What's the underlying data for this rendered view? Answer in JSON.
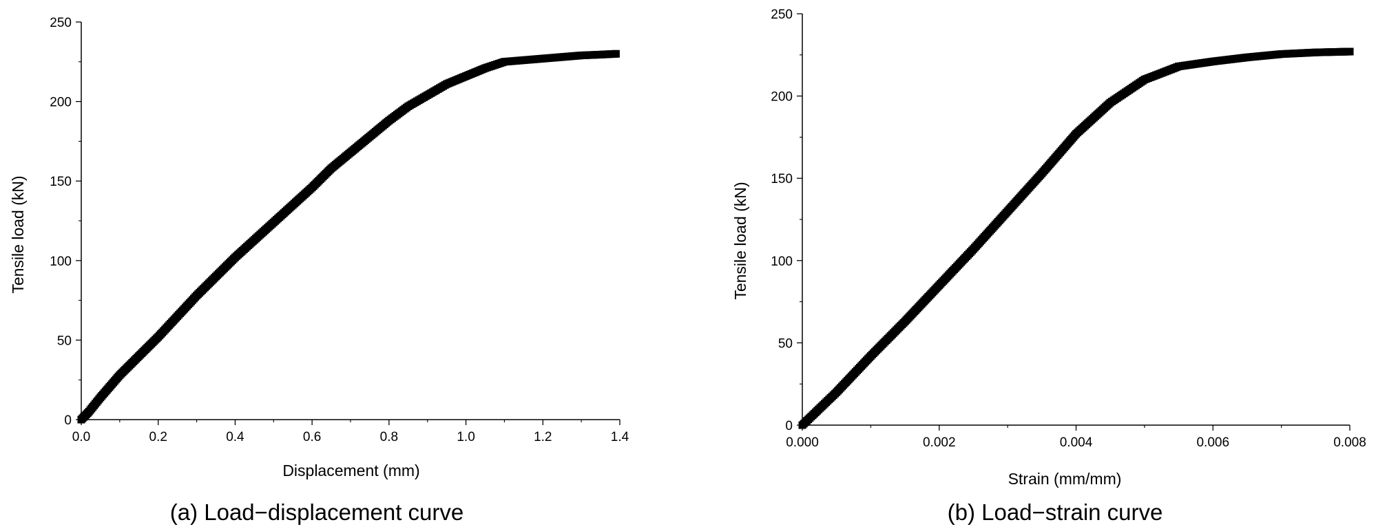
{
  "chart_data": [
    {
      "type": "scatter",
      "caption": "(a) Load−displacement curve",
      "xlabel": "Displacement (mm)",
      "ylabel": "Tensile load (kN)",
      "xlim": [
        0,
        1.4
      ],
      "ylim": [
        0,
        250
      ],
      "xticks": [
        0.0,
        0.2,
        0.4,
        0.6,
        0.8,
        1.0,
        1.2,
        1.4
      ],
      "xtick_labels": [
        "0.0",
        "0.2",
        "0.4",
        "0.6",
        "0.8",
        "1.0",
        "1.2",
        "1.4"
      ],
      "yticks": [
        0,
        50,
        100,
        150,
        200,
        250
      ],
      "ytick_labels": [
        "0",
        "50",
        "100",
        "150",
        "200",
        "250"
      ],
      "marker_color": "#000000",
      "series": [
        {
          "x": [
            0.0,
            0.02,
            0.05,
            0.1,
            0.15,
            0.2,
            0.25,
            0.3,
            0.35,
            0.4,
            0.45,
            0.5,
            0.55,
            0.6,
            0.65,
            0.7,
            0.75,
            0.8,
            0.85,
            0.9,
            0.95,
            1.0,
            1.05,
            1.1,
            1.15,
            1.2,
            1.25,
            1.3,
            1.35,
            1.39
          ],
          "y": [
            0,
            5,
            14,
            28,
            40,
            52,
            65,
            78,
            90,
            102,
            113,
            124,
            135,
            146,
            158,
            168,
            178,
            188,
            197,
            204,
            211,
            216,
            221,
            225,
            226,
            227,
            228,
            229,
            229.5,
            230
          ]
        }
      ]
    },
    {
      "type": "scatter",
      "caption": "(b) Load−strain curve",
      "xlabel": "Strain (mm/mm)",
      "ylabel": "Tensile load (kN)",
      "xlim": [
        0,
        0.008
      ],
      "ylim": [
        0,
        250
      ],
      "xticks": [
        0.0,
        0.002,
        0.004,
        0.006,
        0.008
      ],
      "xtick_labels": [
        "0.000",
        "0.002",
        "0.004",
        "0.006",
        "0.008"
      ],
      "yticks": [
        0,
        50,
        100,
        150,
        200,
        250
      ],
      "ytick_labels": [
        "0",
        "50",
        "100",
        "150",
        "200",
        "250"
      ],
      "marker_color": "#000000",
      "series": [
        {
          "x": [
            0.0,
            0.0005,
            0.001,
            0.0015,
            0.002,
            0.0025,
            0.003,
            0.0035,
            0.004,
            0.0045,
            0.005,
            0.0055,
            0.006,
            0.0065,
            0.007,
            0.0075,
            0.008
          ],
          "y": [
            0,
            20,
            42,
            63,
            85,
            107,
            130,
            153,
            177,
            196,
            210,
            218,
            221,
            223.5,
            225.5,
            226.5,
            227
          ]
        }
      ]
    }
  ]
}
